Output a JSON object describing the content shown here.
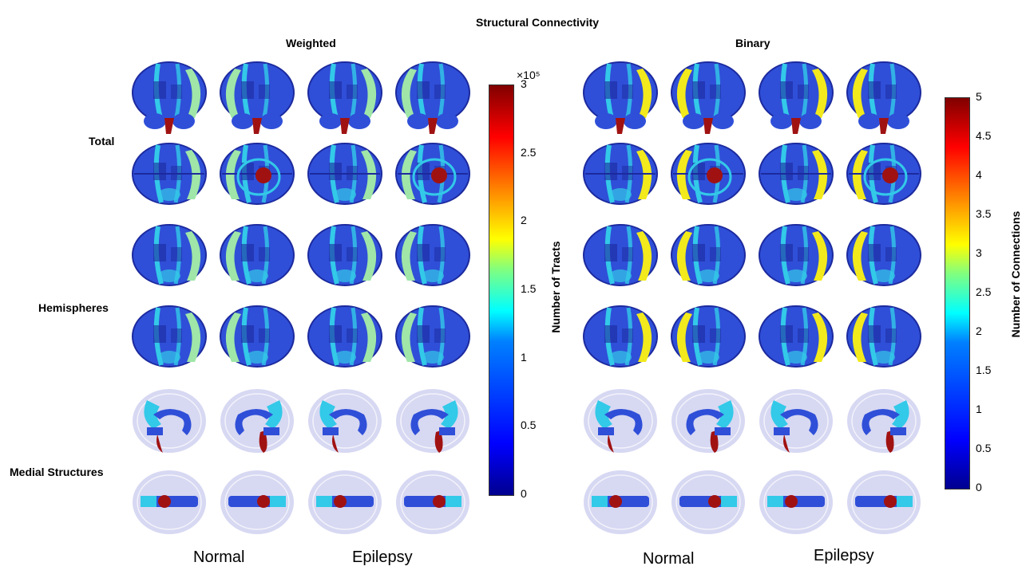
{
  "figure": {
    "title": "Structural Connectivity",
    "panels": [
      {
        "id": "weighted",
        "title": "Weighted",
        "colorbar": {
          "label": "Number of Tracts",
          "multiplier": "×10⁵",
          "ticks": [
            "3",
            "2.5",
            "2",
            "1.5",
            "1",
            "0.5",
            "0"
          ],
          "range": [
            0,
            3
          ]
        },
        "x_groups": [
          "Normal",
          "Epilepsy"
        ],
        "accent": "#9fe6a8"
      },
      {
        "id": "binary",
        "title": "Binary",
        "colorbar": {
          "label": "Number of Connections",
          "ticks": [
            "5",
            "4.5",
            "4",
            "3.5",
            "3",
            "2.5",
            "2",
            "1.5",
            "1",
            "0.5",
            "0"
          ],
          "range": [
            0,
            5
          ]
        },
        "x_groups": [
          "Normal",
          "Epilepsy"
        ],
        "accent": "#f2ea1c"
      }
    ],
    "row_labels": [
      "Total",
      "Hemispheres",
      "Medial Structures"
    ],
    "colors": {
      "brain_base": "#2f4fd8",
      "brain_dark": "#1c2a9e",
      "stripe": "#33c9e8",
      "stem": "#a01212",
      "glass": "#c9cbee"
    }
  }
}
